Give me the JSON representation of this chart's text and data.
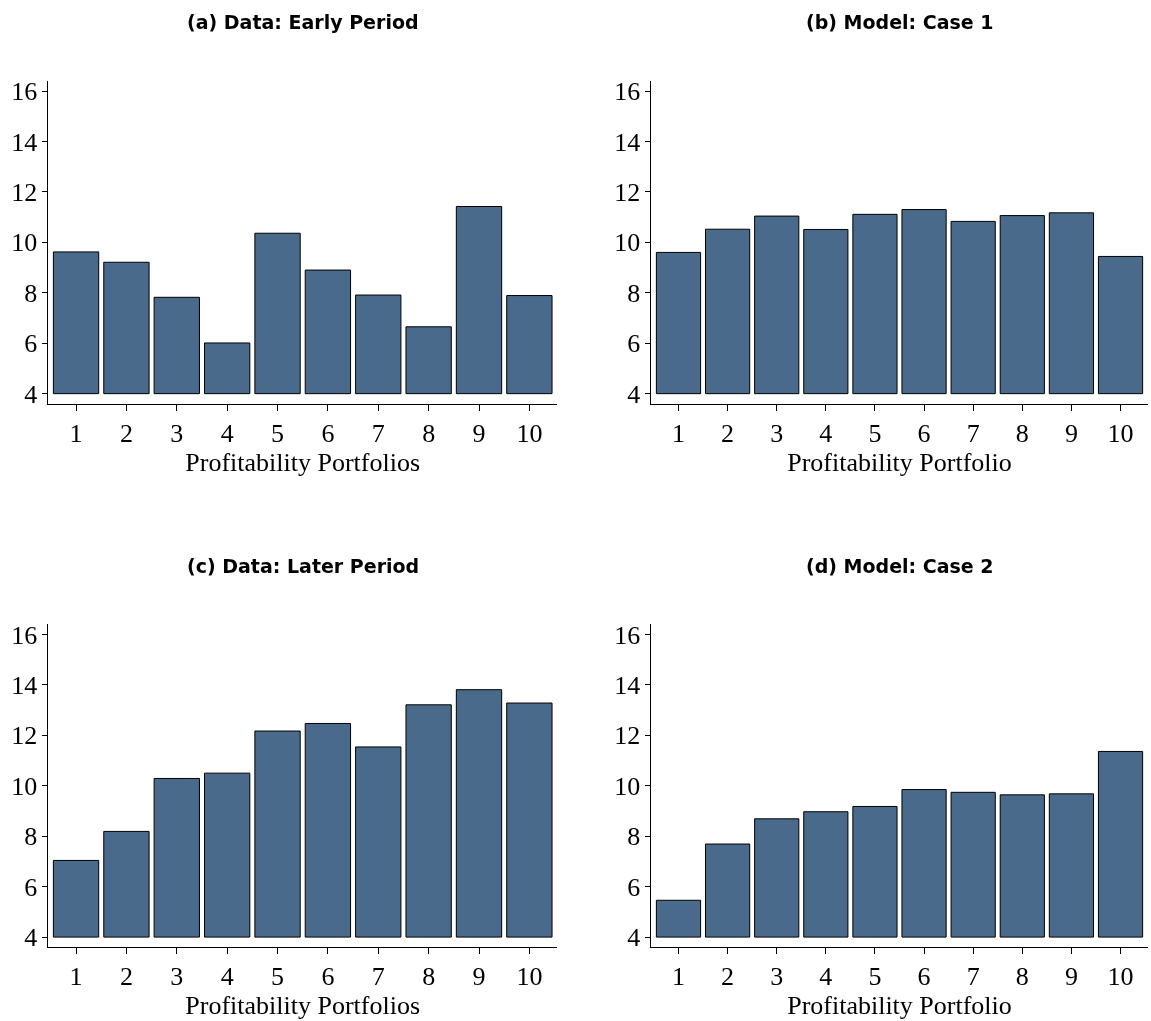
{
  "chart_data": [
    {
      "type": "bar",
      "title": "(a) Data: Early Period",
      "xlabel": "Profitability Portfolios",
      "categories": [
        "1",
        "2",
        "3",
        "4",
        "5",
        "6",
        "7",
        "8",
        "9",
        "10"
      ],
      "base": [
        4,
        4,
        4,
        4,
        4,
        4,
        4,
        4,
        4,
        4
      ],
      "values": [
        5.62,
        5.21,
        3.82,
        2.01,
        6.36,
        4.9,
        3.91,
        2.65,
        7.42,
        3.89
      ],
      "color": "#496a8b",
      "ylim": [
        3.6,
        16.4
      ],
      "yticks": [
        4,
        6,
        8,
        10,
        12,
        14,
        16
      ]
    },
    {
      "type": "bar",
      "title": "(b) Model: Case 1",
      "xlabel": "Profitability Portfolio",
      "categories": [
        "1",
        "2",
        "3",
        "4",
        "5",
        "6",
        "7",
        "8",
        "9",
        "10"
      ],
      "base": [
        4,
        4,
        4,
        4,
        4,
        4,
        4,
        4,
        4,
        4
      ],
      "values": [
        5.6,
        6.52,
        7.04,
        6.51,
        7.11,
        7.3,
        6.83,
        7.06,
        7.17,
        5.44
      ],
      "color": "#496a8b",
      "ylim": [
        3.6,
        16.4
      ],
      "yticks": [
        4,
        6,
        8,
        10,
        12,
        14,
        16
      ]
    },
    {
      "type": "bar",
      "title": "(c) Data: Later Period",
      "xlabel": "Profitability Portfolios",
      "categories": [
        "1",
        "2",
        "3",
        "4",
        "5",
        "6",
        "7",
        "8",
        "9",
        "10"
      ],
      "base": [
        4,
        4,
        4,
        4,
        4,
        4,
        4,
        4,
        4,
        4
      ],
      "values": [
        3.04,
        4.19,
        6.29,
        6.5,
        8.17,
        8.47,
        7.54,
        9.21,
        9.81,
        9.28
      ],
      "color": "#496a8b",
      "ylim": [
        3.6,
        16.4
      ],
      "yticks": [
        4,
        6,
        8,
        10,
        12,
        14,
        16
      ]
    },
    {
      "type": "bar",
      "title": "(d) Model: Case 2",
      "xlabel": "Profitability Portfolio",
      "categories": [
        "1",
        "2",
        "3",
        "4",
        "5",
        "6",
        "7",
        "8",
        "9",
        "10"
      ],
      "base": [
        4,
        4,
        4,
        4,
        4,
        4,
        4,
        4,
        4,
        4
      ],
      "values": [
        1.46,
        3.69,
        4.69,
        4.97,
        5.18,
        5.85,
        5.74,
        5.64,
        5.68,
        7.36
      ],
      "color": "#496a8b",
      "ylim": [
        3.6,
        16.4
      ],
      "yticks": [
        4,
        6,
        8,
        10,
        12,
        14,
        16
      ]
    }
  ]
}
